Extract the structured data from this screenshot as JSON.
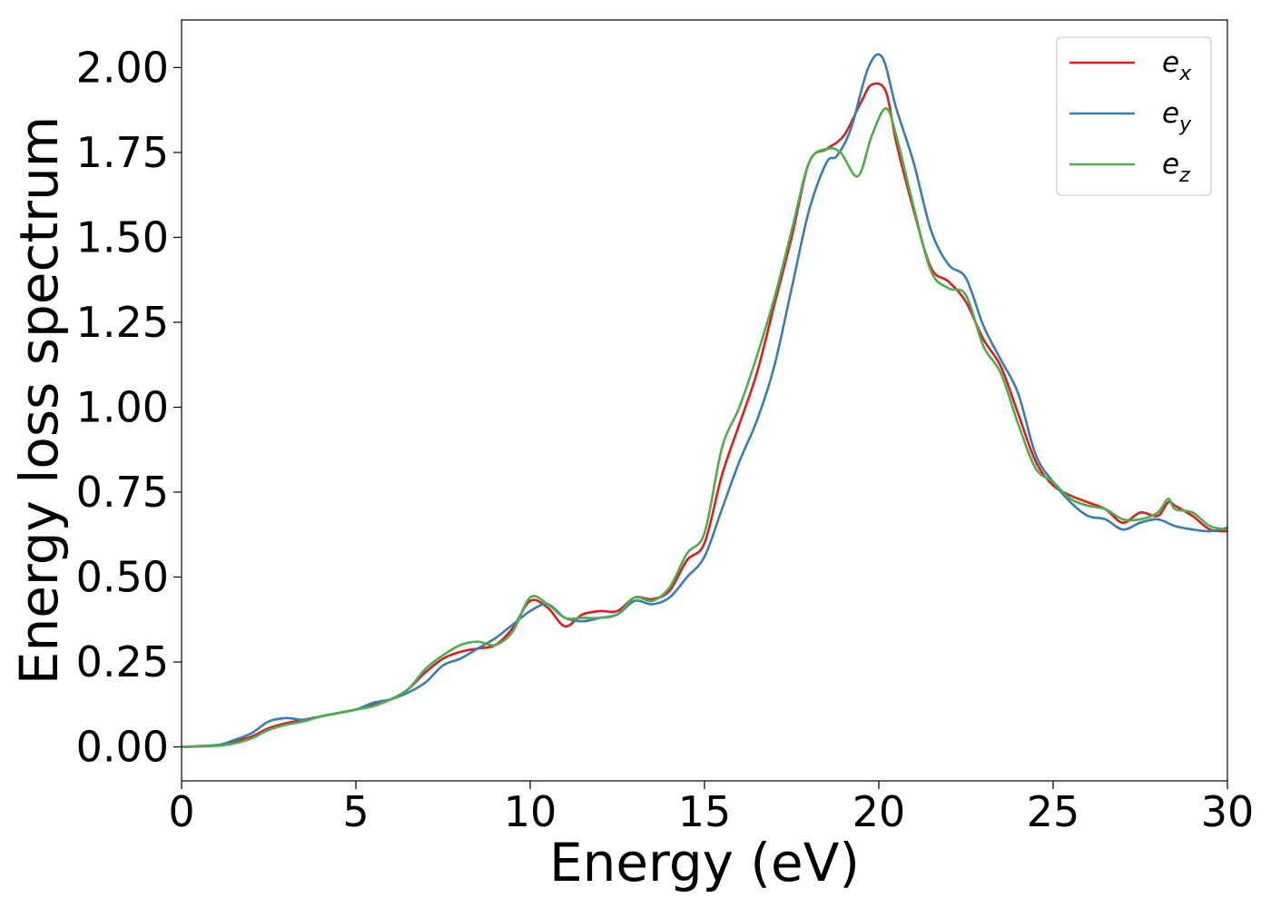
{
  "chart_data": {
    "type": "line",
    "xlabel": "Energy (eV)",
    "ylabel": "Energy loss spectrum",
    "xlim": [
      0,
      30
    ],
    "ylim": [
      -0.1,
      2.14
    ],
    "x_ticks": [
      "0",
      "5",
      "10",
      "15",
      "20",
      "25",
      "30"
    ],
    "y_ticks": [
      "0.00",
      "0.25",
      "0.50",
      "0.75",
      "1.00",
      "1.25",
      "1.50",
      "1.75",
      "2.00"
    ],
    "grid": false,
    "legend_position": "top-right",
    "series": [
      {
        "name": "e_x",
        "label_main": "e",
        "label_sub": "x",
        "color": "#e41a1c",
        "x": [
          0,
          1,
          1.5,
          2,
          2.5,
          3,
          3.5,
          4,
          4.5,
          5,
          5.5,
          6,
          6.5,
          7,
          7.5,
          8,
          8.5,
          9,
          9.5,
          10,
          10.5,
          11,
          11.5,
          12,
          12.5,
          13,
          13.5,
          14,
          14.5,
          15,
          15.5,
          16,
          16.5,
          17,
          17.5,
          18,
          18.5,
          19,
          19.5,
          19.8,
          20.2,
          20.5,
          21,
          21.5,
          22,
          22.5,
          23,
          23.5,
          24,
          24.5,
          25,
          25.5,
          26,
          26.5,
          27,
          27.5,
          28,
          28.3,
          28.5,
          29,
          29.5,
          30
        ],
        "y": [
          0.0,
          0.005,
          0.015,
          0.03,
          0.055,
          0.07,
          0.08,
          0.09,
          0.1,
          0.11,
          0.125,
          0.14,
          0.17,
          0.22,
          0.26,
          0.28,
          0.29,
          0.3,
          0.35,
          0.43,
          0.41,
          0.355,
          0.39,
          0.4,
          0.4,
          0.44,
          0.435,
          0.46,
          0.55,
          0.6,
          0.8,
          0.95,
          1.1,
          1.3,
          1.5,
          1.72,
          1.76,
          1.8,
          1.9,
          1.95,
          1.93,
          1.78,
          1.58,
          1.41,
          1.37,
          1.31,
          1.2,
          1.12,
          0.98,
          0.84,
          0.77,
          0.74,
          0.72,
          0.7,
          0.66,
          0.69,
          0.68,
          0.72,
          0.71,
          0.68,
          0.64,
          0.635
        ]
      },
      {
        "name": "e_y",
        "label_main": "e",
        "label_sub": "y",
        "color": "#377eb8",
        "x": [
          0,
          1,
          1.5,
          2,
          2.5,
          3,
          3.5,
          4,
          4.5,
          5,
          5.5,
          6,
          6.5,
          7,
          7.5,
          8,
          8.5,
          9,
          9.5,
          10,
          10.5,
          11,
          11.5,
          12,
          12.5,
          13,
          13.5,
          14,
          14.5,
          15,
          15.5,
          16,
          16.5,
          17,
          17.5,
          18,
          18.5,
          18.8,
          19.2,
          19.7,
          20.1,
          20.5,
          21,
          21.5,
          22,
          22.5,
          23,
          23.5,
          24,
          24.5,
          25,
          25.5,
          26,
          26.5,
          27,
          27.5,
          28,
          28.5,
          29,
          29.5,
          30
        ],
        "y": [
          0.0,
          0.005,
          0.02,
          0.04,
          0.075,
          0.085,
          0.08,
          0.09,
          0.1,
          0.11,
          0.13,
          0.14,
          0.16,
          0.19,
          0.24,
          0.26,
          0.29,
          0.32,
          0.36,
          0.4,
          0.42,
          0.38,
          0.37,
          0.38,
          0.39,
          0.43,
          0.42,
          0.44,
          0.5,
          0.56,
          0.7,
          0.84,
          0.96,
          1.12,
          1.35,
          1.58,
          1.72,
          1.74,
          1.82,
          2.0,
          2.03,
          1.88,
          1.72,
          1.52,
          1.42,
          1.38,
          1.24,
          1.14,
          1.04,
          0.86,
          0.78,
          0.72,
          0.68,
          0.67,
          0.64,
          0.66,
          0.67,
          0.65,
          0.64,
          0.635,
          0.645
        ]
      },
      {
        "name": "e_z",
        "label_main": "e",
        "label_sub": "z",
        "color": "#4daf4a",
        "x": [
          0,
          1,
          1.5,
          2,
          2.5,
          3,
          3.5,
          4,
          4.5,
          5,
          5.5,
          6,
          6.5,
          7,
          7.5,
          8,
          8.5,
          9,
          9.5,
          10,
          10.5,
          11,
          11.5,
          12,
          12.5,
          13,
          13.5,
          14,
          14.5,
          15,
          15.5,
          16,
          16.5,
          17,
          17.5,
          18,
          18.5,
          18.9,
          19.4,
          19.8,
          20.2,
          20.5,
          21,
          21.5,
          22,
          22.5,
          23,
          23.5,
          24,
          24.5,
          25,
          25.5,
          26,
          26.5,
          27,
          27.5,
          28,
          28.3,
          28.5,
          29,
          29.5,
          30
        ],
        "y": [
          0.0,
          0.003,
          0.01,
          0.025,
          0.05,
          0.065,
          0.075,
          0.09,
          0.1,
          0.11,
          0.12,
          0.14,
          0.17,
          0.23,
          0.27,
          0.3,
          0.31,
          0.3,
          0.34,
          0.44,
          0.42,
          0.38,
          0.38,
          0.38,
          0.39,
          0.44,
          0.43,
          0.47,
          0.57,
          0.63,
          0.88,
          1.0,
          1.15,
          1.32,
          1.52,
          1.72,
          1.76,
          1.75,
          1.68,
          1.8,
          1.88,
          1.8,
          1.59,
          1.4,
          1.35,
          1.33,
          1.18,
          1.1,
          0.95,
          0.82,
          0.78,
          0.73,
          0.71,
          0.7,
          0.67,
          0.67,
          0.69,
          0.73,
          0.7,
          0.69,
          0.65,
          0.64
        ]
      }
    ]
  }
}
